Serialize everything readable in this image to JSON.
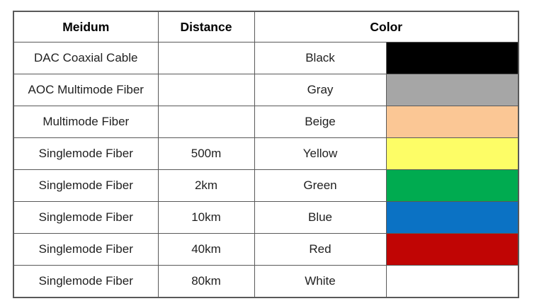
{
  "chart_data": {
    "type": "table",
    "title": "",
    "columns": [
      "Meidum",
      "Distance",
      "Color"
    ],
    "rows": [
      {
        "medium": "DAC Coaxial Cable",
        "distance": "",
        "color_name": "Black",
        "color_hex": "#000000"
      },
      {
        "medium": "AOC Multimode Fiber",
        "distance": "",
        "color_name": "Gray",
        "color_hex": "#A6A6A6"
      },
      {
        "medium": "Multimode Fiber",
        "distance": "",
        "color_name": "Beige",
        "color_hex": "#FBC795"
      },
      {
        "medium": "Singlemode Fiber",
        "distance": "500m",
        "color_name": "Yellow",
        "color_hex": "#FDFD66"
      },
      {
        "medium": "Singlemode Fiber",
        "distance": "2km",
        "color_name": "Green",
        "color_hex": "#00AB50"
      },
      {
        "medium": "Singlemode Fiber",
        "distance": "10km",
        "color_name": "Blue",
        "color_hex": "#0B72C4"
      },
      {
        "medium": "Singlemode Fiber",
        "distance": "40km",
        "color_name": "Red",
        "color_hex": "#C00504"
      },
      {
        "medium": "Singlemode Fiber",
        "distance": "80km",
        "color_name": "White",
        "color_hex": "#FFFFFF"
      }
    ]
  },
  "header": {
    "medium": "Meidum",
    "distance": "Distance",
    "color": "Color"
  }
}
